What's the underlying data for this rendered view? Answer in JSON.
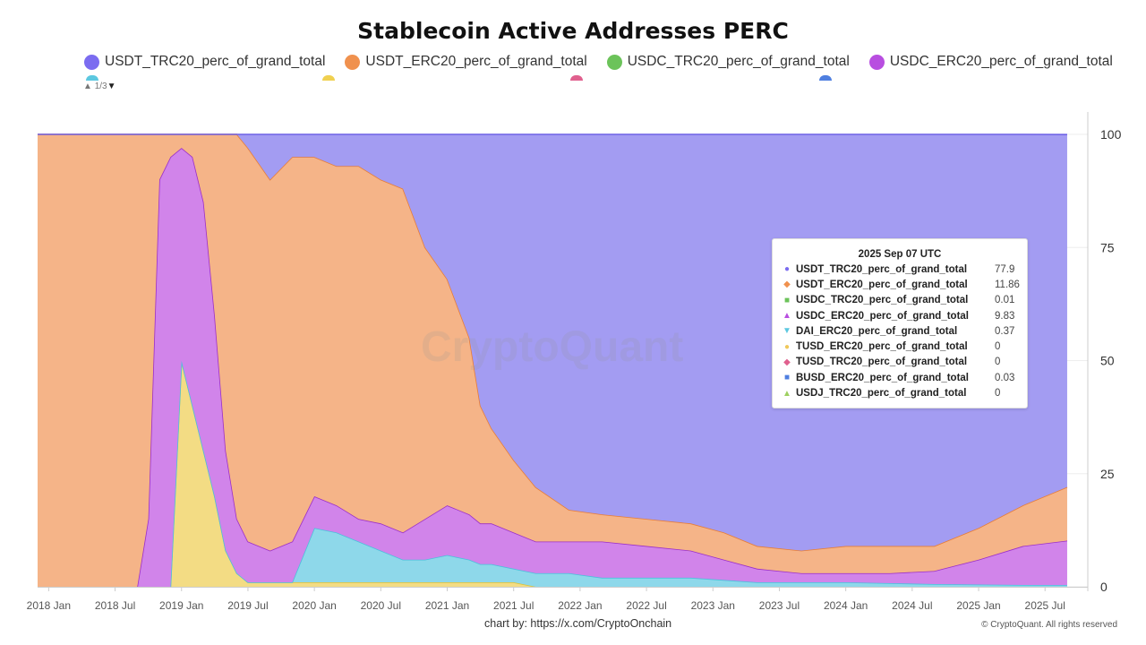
{
  "chart_data": {
    "type": "area",
    "stacking": "percent",
    "title": "Stablecoin Active Addresses PERC",
    "xlabel": "",
    "ylabel": "",
    "ylim": [
      0,
      100
    ],
    "y_ticks": [
      "0",
      "25",
      "50",
      "75",
      "100"
    ],
    "y_axis_side": "right",
    "x_ticks": [
      "2018 Jan",
      "2018 Jul",
      "2019 Jan",
      "2019 Jul",
      "2020 Jan",
      "2020 Jul",
      "2021 Jan",
      "2021 Jul",
      "2022 Jan",
      "2022 Jul",
      "2023 Jan",
      "2023 Jul",
      "2024 Jan",
      "2024 Jul",
      "2025 Jan",
      "2025 Jul"
    ],
    "x_tick_dates": [
      "2018-01",
      "2018-07",
      "2019-01",
      "2019-07",
      "2020-01",
      "2020-07",
      "2021-01",
      "2021-07",
      "2022-01",
      "2022-07",
      "2023-01",
      "2023-07",
      "2024-01",
      "2024-07",
      "2025-01",
      "2025-07"
    ],
    "xlim": [
      "2017-12",
      "2025-09"
    ],
    "legend_position": "top",
    "legend_page": "1/3",
    "x": [
      "2017-12",
      "2018-09",
      "2018-10",
      "2018-11",
      "2018-12",
      "2019-01",
      "2019-02",
      "2019-03",
      "2019-04",
      "2019-05",
      "2019-06",
      "2019-07",
      "2019-09",
      "2019-11",
      "2020-01",
      "2020-03",
      "2020-05",
      "2020-07",
      "2020-09",
      "2020-11",
      "2021-01",
      "2021-03",
      "2021-04",
      "2021-05",
      "2021-07",
      "2021-09",
      "2021-12",
      "2022-03",
      "2022-07",
      "2022-11",
      "2023-02",
      "2023-05",
      "2023-09",
      "2024-01",
      "2024-05",
      "2024-09",
      "2025-01",
      "2025-05",
      "2025-09"
    ],
    "series": [
      {
        "name": "TUSD_ERC20_perc_of_grand_total",
        "fill": "#f3dc84",
        "line": "#d9c23a",
        "values": [
          0,
          0,
          0,
          0,
          0,
          50,
          40,
          30,
          20,
          8,
          3,
          1,
          1,
          1,
          1,
          1,
          1,
          1,
          1,
          1,
          1,
          1,
          1,
          1,
          1,
          0,
          0,
          0,
          0,
          0,
          0,
          0,
          0,
          0,
          0,
          0,
          0,
          0,
          0
        ]
      },
      {
        "name": "DAI_ERC20_perc_of_grand_total",
        "fill": "#8ed8ea",
        "line": "#4cc0dc",
        "values": [
          0,
          0,
          0,
          0,
          0,
          0,
          0,
          0,
          0,
          0,
          0,
          0,
          0,
          0,
          12,
          11,
          9,
          7,
          5,
          5,
          6,
          5,
          4,
          4,
          3,
          3,
          3,
          2,
          2,
          2,
          1.5,
          1,
          1,
          1,
          0.8,
          0.6,
          0.5,
          0.4,
          0.37
        ]
      },
      {
        "name": "USDC_ERC20_perc_of_grand_total",
        "fill": "#d184ea",
        "line": "#9a2fc8",
        "values": [
          0,
          0,
          15,
          90,
          95,
          47,
          55,
          55,
          40,
          22,
          12,
          9,
          7,
          9,
          7,
          6,
          5,
          6,
          6,
          9,
          11,
          10,
          9,
          9,
          8,
          7,
          7,
          8,
          7,
          6,
          4.5,
          3,
          2,
          2,
          2.2,
          2.9,
          5.5,
          8.6,
          9.83
        ]
      },
      {
        "name": "USDT_ERC20_perc_of_grand_total",
        "fill": "#f5b488",
        "line": "#e87d36",
        "values": [
          100,
          100,
          85,
          10,
          5,
          3,
          5,
          15,
          40,
          70,
          85,
          87,
          82,
          85,
          75,
          75,
          78,
          76,
          76,
          60,
          50,
          39,
          26,
          21,
          16,
          12,
          7,
          6,
          6,
          6,
          6,
          5,
          5,
          6,
          6,
          5.5,
          7,
          9,
          11.86
        ]
      },
      {
        "name": "USDT_TRC20_perc_of_grand_total",
        "fill": "#a39cf2",
        "line": "#6e62e6",
        "values": [
          0,
          0,
          0,
          0,
          0,
          0,
          0,
          0,
          0,
          0,
          0,
          3,
          10,
          5,
          5,
          7,
          7,
          10,
          12,
          25,
          32,
          45,
          60,
          65,
          72,
          78,
          83,
          84,
          85,
          86,
          88,
          91,
          92,
          91,
          91,
          91,
          87,
          82,
          77.9
        ]
      }
    ]
  },
  "legend": [
    {
      "label": "USDT_TRC20_perc_of_grand_total",
      "color": "#7b6cf0"
    },
    {
      "label": "USDT_ERC20_perc_of_grand_total",
      "color": "#f0914e"
    },
    {
      "label": "USDC_TRC20_perc_of_grand_total",
      "color": "#6cc35a"
    },
    {
      "label": "USDC_ERC20_perc_of_grand_total",
      "color": "#b84ee0"
    }
  ],
  "tooltip": {
    "title": "2025 Sep 07 UTC",
    "rows": [
      {
        "marker": "●",
        "color": "#7b6cf0",
        "name": "USDT_TRC20_perc_of_grand_total",
        "value": "77.9"
      },
      {
        "marker": "◆",
        "color": "#f0914e",
        "name": "USDT_ERC20_perc_of_grand_total",
        "value": "11.86"
      },
      {
        "marker": "■",
        "color": "#6cc35a",
        "name": "USDC_TRC20_perc_of_grand_total",
        "value": "0.01"
      },
      {
        "marker": "▲",
        "color": "#b84ee0",
        "name": "USDC_ERC20_perc_of_grand_total",
        "value": "9.83"
      },
      {
        "marker": "▼",
        "color": "#5cc8e0",
        "name": "DAI_ERC20_perc_of_grand_total",
        "value": "0.37"
      },
      {
        "marker": "●",
        "color": "#f0c85a",
        "name": "TUSD_ERC20_perc_of_grand_total",
        "value": "0"
      },
      {
        "marker": "◆",
        "color": "#e0608e",
        "name": "TUSD_TRC20_perc_of_grand_total",
        "value": "0"
      },
      {
        "marker": "■",
        "color": "#4f7fe0",
        "name": "BUSD_ERC20_perc_of_grand_total",
        "value": "0.03"
      },
      {
        "marker": "▲",
        "color": "#9ed060",
        "name": "USDJ_TRC20_perc_of_grand_total",
        "value": "0"
      }
    ]
  },
  "watermark": "CryptoQuant",
  "footer": {
    "prefix": "chart by: ",
    "link": "https://x.com/CryptoOnchain",
    "copyright": "© CryptoQuant. All rights reserved"
  }
}
